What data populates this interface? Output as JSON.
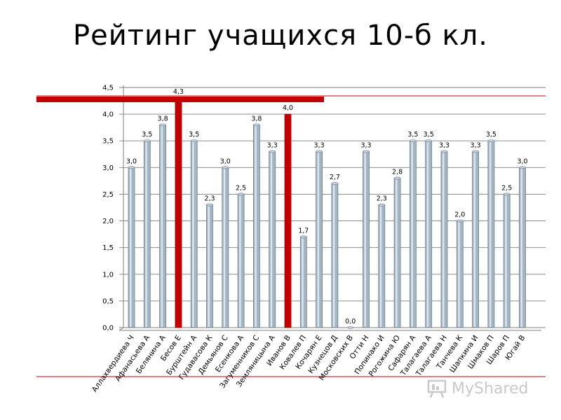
{
  "slide": {
    "title": "Рейтинг учащихся 10-б кл."
  },
  "chart_data": {
    "type": "bar",
    "title": "",
    "xlabel": "",
    "ylabel": "",
    "ylim": [
      0,
      4.5
    ],
    "yticks": [
      "0,0",
      "0,5",
      "1,0",
      "1,5",
      "2,0",
      "2,5",
      "3,0",
      "3,5",
      "4,0",
      "4,5"
    ],
    "grid": true,
    "categories": [
      "Аллахвердиева Ч",
      "Афанасьева А",
      "Белянина А",
      "Бесов Е",
      "Бурштейн А",
      "Гудавасова К",
      "Демьянов С",
      "Есенкова А",
      "Загуменников С",
      "Земляницына А",
      "Иванов В",
      "Ковалев П",
      "Кочарян Е",
      "Кузнецов Д",
      "Московских В",
      "Отти Н",
      "Попинако И",
      "Рогожина Ю",
      "Сафарян А",
      "Талагаева А",
      "Талагаева Н",
      "Танчева К",
      "Шапкина И",
      "Шмаков П",
      "Шаров П",
      "Югай В"
    ],
    "values": [
      3.0,
      3.5,
      3.8,
      4.3,
      3.5,
      2.3,
      3.0,
      2.5,
      3.8,
      3.3,
      4.0,
      1.7,
      3.3,
      2.7,
      0.0,
      3.3,
      2.3,
      2.8,
      3.5,
      3.5,
      3.3,
      2.0,
      3.3,
      3.5,
      2.5,
      3.0
    ],
    "value_labels": [
      "3,0",
      "3,5",
      "3,8",
      "4,3",
      "3,5",
      "2,3",
      "3,0",
      "2,5",
      "3,8",
      "3,3",
      "4,0",
      "1,7",
      "3,3",
      "2,7",
      "0,0",
      "3,3",
      "2,3",
      "2,8",
      "3,5",
      "3,5",
      "3,3",
      "2,0",
      "3,3",
      "3,5",
      "2,5",
      "3,0"
    ],
    "highlighted": [
      "Бесов Е",
      "Иванов В"
    ],
    "colors": {
      "bar": "#a3b4c4",
      "bar_edge": "#6e7f90",
      "highlight": "#c00000",
      "grid": "#7f7f7f",
      "accent_line": "#c00000"
    }
  },
  "logo": {
    "text": "MyShared",
    "icon": "presentation-board-icon"
  }
}
